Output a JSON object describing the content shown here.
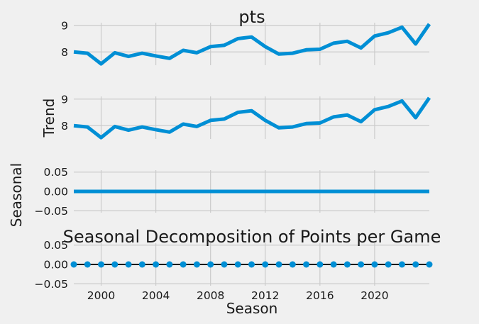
{
  "chart_data": [
    {
      "type": "line",
      "title": "pts",
      "ylabel": "",
      "xlim": [
        1998,
        2024
      ],
      "ylim": [
        7.5,
        9.1
      ],
      "yticks": [
        8,
        9
      ],
      "grid": true,
      "x": [
        1998,
        1999,
        2000,
        2001,
        2002,
        2003,
        2004,
        2005,
        2006,
        2007,
        2008,
        2009,
        2010,
        2011,
        2012,
        2013,
        2014,
        2015,
        2016,
        2017,
        2018,
        2019,
        2020,
        2021,
        2022,
        2023,
        2024
      ],
      "series": [
        {
          "values": [
            8.0,
            7.95,
            7.55,
            7.97,
            7.83,
            7.95,
            7.85,
            7.76,
            8.06,
            7.97,
            8.2,
            8.25,
            8.5,
            8.56,
            8.2,
            7.92,
            7.95,
            8.08,
            8.1,
            8.33,
            8.4,
            8.15,
            8.6,
            8.72,
            8.93,
            8.3,
            9.05
          ],
          "color": "#008fd5"
        }
      ]
    },
    {
      "type": "line",
      "title": "",
      "ylabel": "Trend",
      "xlim": [
        1998,
        2024
      ],
      "ylim": [
        7.5,
        9.1
      ],
      "yticks": [
        8,
        9
      ],
      "grid": true,
      "x": [
        1998,
        1999,
        2000,
        2001,
        2002,
        2003,
        2004,
        2005,
        2006,
        2007,
        2008,
        2009,
        2010,
        2011,
        2012,
        2013,
        2014,
        2015,
        2016,
        2017,
        2018,
        2019,
        2020,
        2021,
        2022,
        2023,
        2024
      ],
      "series": [
        {
          "values": [
            8.0,
            7.95,
            7.55,
            7.97,
            7.83,
            7.95,
            7.85,
            7.76,
            8.06,
            7.97,
            8.2,
            8.25,
            8.5,
            8.56,
            8.2,
            7.92,
            7.95,
            8.08,
            8.1,
            8.33,
            8.4,
            8.15,
            8.6,
            8.72,
            8.93,
            8.3,
            9.05
          ],
          "color": "#008fd5"
        }
      ]
    },
    {
      "type": "line",
      "title": "",
      "ylabel": "Seasonal",
      "xlim": [
        1998,
        2024
      ],
      "ylim": [
        -0.055,
        0.055
      ],
      "yticks": [
        "0.05",
        "0.00",
        "−0.05"
      ],
      "ytick_values": [
        0.05,
        0,
        -0.05
      ],
      "grid": true,
      "x": [
        1998,
        2024
      ],
      "series": [
        {
          "values": [
            0,
            0
          ],
          "color": "#008fd5"
        }
      ]
    },
    {
      "type": "scatter",
      "title": "Seasonal Decomposition of Points per Game",
      "ylabel": "",
      "xlabel": "Season",
      "xlim": [
        1998,
        2024
      ],
      "ylim": [
        -0.055,
        0.055
      ],
      "yticks": [
        "0.05",
        "0.00",
        "−0.05"
      ],
      "ytick_values": [
        0.05,
        0,
        -0.05
      ],
      "xticks": [
        "2000",
        "2004",
        "2008",
        "2012",
        "2016",
        "2020"
      ],
      "xtick_values": [
        2000,
        2004,
        2008,
        2012,
        2016,
        2020
      ],
      "grid": true,
      "zero_line_color": "#000000",
      "x": [
        1998,
        1999,
        2000,
        2001,
        2002,
        2003,
        2004,
        2005,
        2006,
        2007,
        2008,
        2009,
        2010,
        2011,
        2012,
        2013,
        2014,
        2015,
        2016,
        2017,
        2018,
        2019,
        2020,
        2021,
        2022,
        2023,
        2024
      ],
      "series": [
        {
          "values": [
            0,
            0,
            0,
            0,
            0,
            0,
            0,
            0,
            0,
            0,
            0,
            0,
            0,
            0,
            0,
            0,
            0,
            0,
            0,
            0,
            0,
            0,
            0,
            0,
            0,
            0,
            0
          ],
          "color": "#008fd5"
        }
      ]
    }
  ]
}
